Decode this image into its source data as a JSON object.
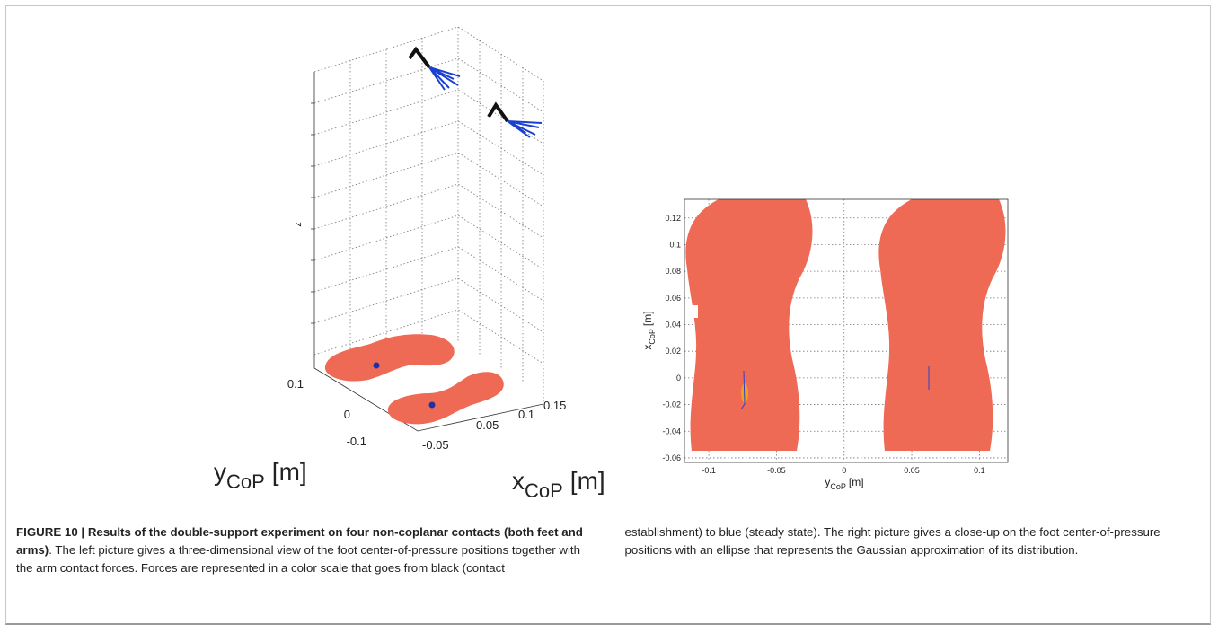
{
  "figure": {
    "left": {
      "z_label": "z",
      "y_label": {
        "main": "y",
        "sub": "CoP",
        "unit": "[m]"
      },
      "x_label": {
        "main": "x",
        "sub": "CoP",
        "unit": "[m]"
      },
      "yticks": [
        0.1,
        0,
        -0.1
      ],
      "xticks": [
        -0.05,
        0.05,
        0.1,
        0.15
      ]
    },
    "right": {
      "y_label": {
        "main": "x",
        "sub": "CoP",
        "unit": "[m]"
      },
      "x_label": {
        "main": "y",
        "sub": "CoP",
        "unit": "[m]"
      },
      "xlim": [
        -0.118,
        0.121
      ],
      "ylim": [
        -0.0634,
        0.134
      ],
      "xticks": [
        -0.1,
        -0.05,
        0,
        0.05,
        0.1
      ],
      "yticks": [
        0.12,
        0.1,
        0.08,
        0.06,
        0.04,
        0.02,
        0,
        -0.02,
        -0.04,
        -0.06
      ]
    }
  },
  "caption": {
    "bold": "FIGURE 10 | Results of the double-support experiment on four non-coplanar contacts (both feet and arms)",
    "text": ". The left picture gives a three-dimensional view of the foot center-of-pressure positions together with the arm contact forces. Forces are represented in a color scale that goes from black (contact establishment) to blue (steady state). The right picture gives a close-up on the foot center-of-pressure positions with an ellipse that represents the Gaussian approximation of its distribution."
  }
}
